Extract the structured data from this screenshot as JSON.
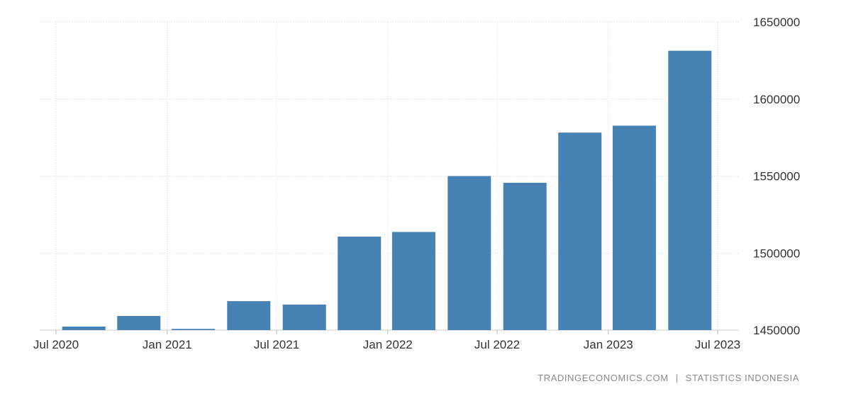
{
  "chart_data": {
    "type": "bar",
    "categories": [
      "2020-09",
      "2020-12",
      "2021-03",
      "2021-06",
      "2021-09",
      "2021-12",
      "2022-03",
      "2022-06",
      "2022-09",
      "2022-12",
      "2023-03",
      "2023-06"
    ],
    "series": [
      {
        "values": [
          1452300,
          1459200,
          1450800,
          1468800,
          1466600,
          1510700,
          1513700,
          1550000,
          1545600,
          1578200,
          1582700,
          1631300
        ]
      }
    ],
    "ylim": [
      1450000,
      1650000
    ],
    "yticks": [
      1450000,
      1500000,
      1550000,
      1600000,
      1650000
    ],
    "ytick_labels": [
      "1450000",
      "1500000",
      "1550000",
      "1600000",
      "1650000"
    ],
    "xticks": [
      "Jul 2020",
      "Jan 2021",
      "Jul 2021",
      "Jan 2022",
      "Jul 2022",
      "Jan 2023",
      "Jul 2023"
    ],
    "y_axis_position": "right",
    "grid": true,
    "legend": "none",
    "bar_color": "#4682b4",
    "grid_color": "#d9d9d9",
    "source": "TRADINGECONOMICS.COM  |  STATISTICS INDONESIA"
  },
  "footer": {
    "site": "TRADINGECONOMICS.COM",
    "separator": "|",
    "provider": "STATISTICS INDONESIA"
  }
}
